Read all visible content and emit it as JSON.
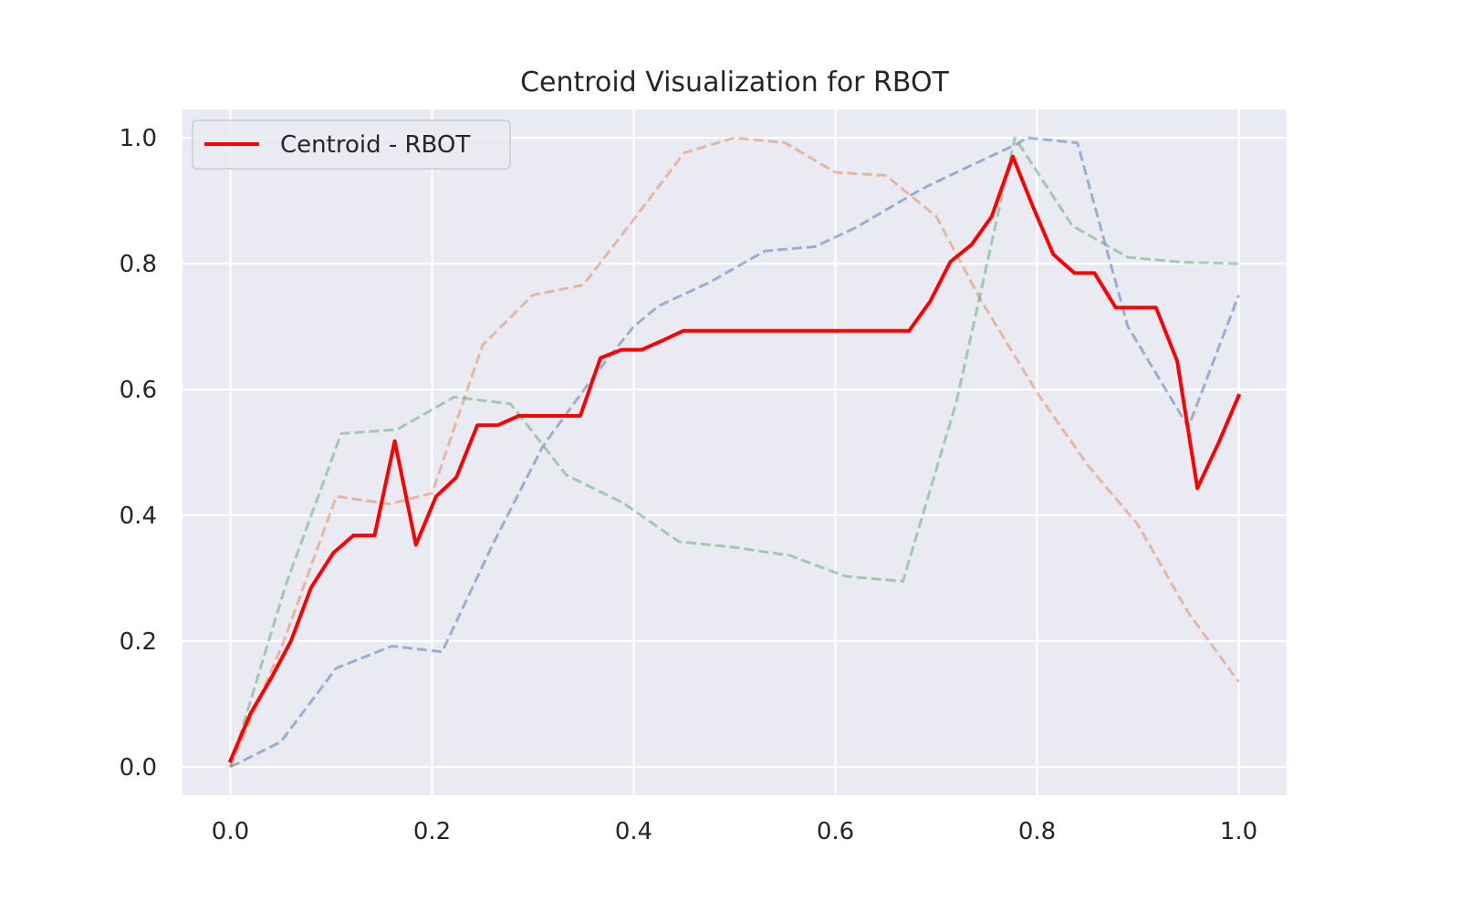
{
  "chart_data": {
    "type": "line",
    "title": "Centroid Visualization for RBOT",
    "xlabel": "",
    "ylabel": "",
    "xlim": [
      -0.0475,
      1.0475
    ],
    "ylim": [
      -0.045,
      1.045
    ],
    "xticks": [
      0.0,
      0.2,
      0.4,
      0.6,
      0.8,
      1.0
    ],
    "xtick_labels": [
      "0.0",
      "0.2",
      "0.4",
      "0.6",
      "0.8",
      "1.0"
    ],
    "yticks": [
      0.0,
      0.2,
      0.4,
      0.6,
      0.8,
      1.0
    ],
    "ytick_labels": [
      "0.0",
      "0.2",
      "0.4",
      "0.6",
      "0.8",
      "1.0"
    ],
    "grid": true,
    "legend_position": "upper-left",
    "background_color": "#eaeaf2",
    "series": [
      {
        "name": "",
        "style": "dashed",
        "color": "#4c72b0",
        "opacity": 0.5,
        "x": [
          0.0,
          0.05,
          0.105,
          0.16,
          0.21,
          0.26,
          0.31,
          0.36,
          0.4,
          0.425,
          0.475,
          0.53,
          0.58,
          0.62,
          0.685,
          0.72,
          0.78,
          0.79,
          0.84,
          0.89,
          0.95,
          1.0
        ],
        "y": [
          0.0,
          0.04,
          0.157,
          0.192,
          0.183,
          0.353,
          0.51,
          0.62,
          0.7,
          0.733,
          0.77,
          0.82,
          0.827,
          0.857,
          0.918,
          0.945,
          0.99,
          1.0,
          0.992,
          0.7,
          0.54,
          0.75
        ]
      },
      {
        "name": "",
        "style": "dashed",
        "color": "#dd8452",
        "opacity": 0.5,
        "x": [
          0.0,
          0.053,
          0.105,
          0.158,
          0.2,
          0.25,
          0.3,
          0.35,
          0.4,
          0.45,
          0.5,
          0.55,
          0.6,
          0.65,
          0.7,
          0.745,
          0.8,
          0.85,
          0.9,
          0.95,
          1.0
        ],
        "y": [
          0.0,
          0.2,
          0.43,
          0.418,
          0.435,
          0.67,
          0.75,
          0.766,
          0.87,
          0.976,
          1.0,
          0.992,
          0.945,
          0.94,
          0.875,
          0.74,
          0.595,
          0.48,
          0.385,
          0.245,
          0.135
        ]
      },
      {
        "name": "",
        "style": "dashed",
        "color": "#55a868",
        "opacity": 0.5,
        "x": [
          0.0,
          0.055,
          0.11,
          0.165,
          0.222,
          0.278,
          0.333,
          0.389,
          0.445,
          0.5,
          0.555,
          0.61,
          0.667,
          0.72,
          0.778,
          0.835,
          0.89,
          0.945,
          1.0
        ],
        "y": [
          0.0,
          0.29,
          0.53,
          0.536,
          0.588,
          0.577,
          0.464,
          0.42,
          0.358,
          0.349,
          0.336,
          0.303,
          0.295,
          0.58,
          1.0,
          0.86,
          0.81,
          0.802,
          0.8
        ]
      },
      {
        "name": "Centroid - RBOT",
        "style": "solid",
        "color": "#ff0000",
        "opacity": 1.0,
        "x": [
          0.0,
          0.02,
          0.04,
          0.06,
          0.08,
          0.102,
          0.122,
          0.143,
          0.163,
          0.184,
          0.204,
          0.224,
          0.245,
          0.265,
          0.286,
          0.306,
          0.327,
          0.347,
          0.367,
          0.388,
          0.408,
          0.429,
          0.449,
          0.469,
          0.49,
          0.51,
          0.531,
          0.551,
          0.571,
          0.592,
          0.612,
          0.633,
          0.653,
          0.673,
          0.694,
          0.714,
          0.735,
          0.755,
          0.776,
          0.796,
          0.816,
          0.837,
          0.857,
          0.878,
          0.898,
          0.918,
          0.939,
          0.959,
          0.98,
          1.0
        ],
        "y": [
          0.01,
          0.085,
          0.14,
          0.2,
          0.285,
          0.34,
          0.368,
          0.368,
          0.518,
          0.353,
          0.43,
          0.46,
          0.543,
          0.543,
          0.558,
          0.558,
          0.558,
          0.558,
          0.65,
          0.663,
          0.663,
          0.678,
          0.693,
          0.693,
          0.693,
          0.693,
          0.693,
          0.693,
          0.693,
          0.693,
          0.693,
          0.693,
          0.693,
          0.693,
          0.74,
          0.803,
          0.83,
          0.875,
          0.97,
          0.89,
          0.815,
          0.785,
          0.785,
          0.73,
          0.73,
          0.73,
          0.645,
          0.443,
          0.515,
          0.59
        ]
      }
    ]
  }
}
